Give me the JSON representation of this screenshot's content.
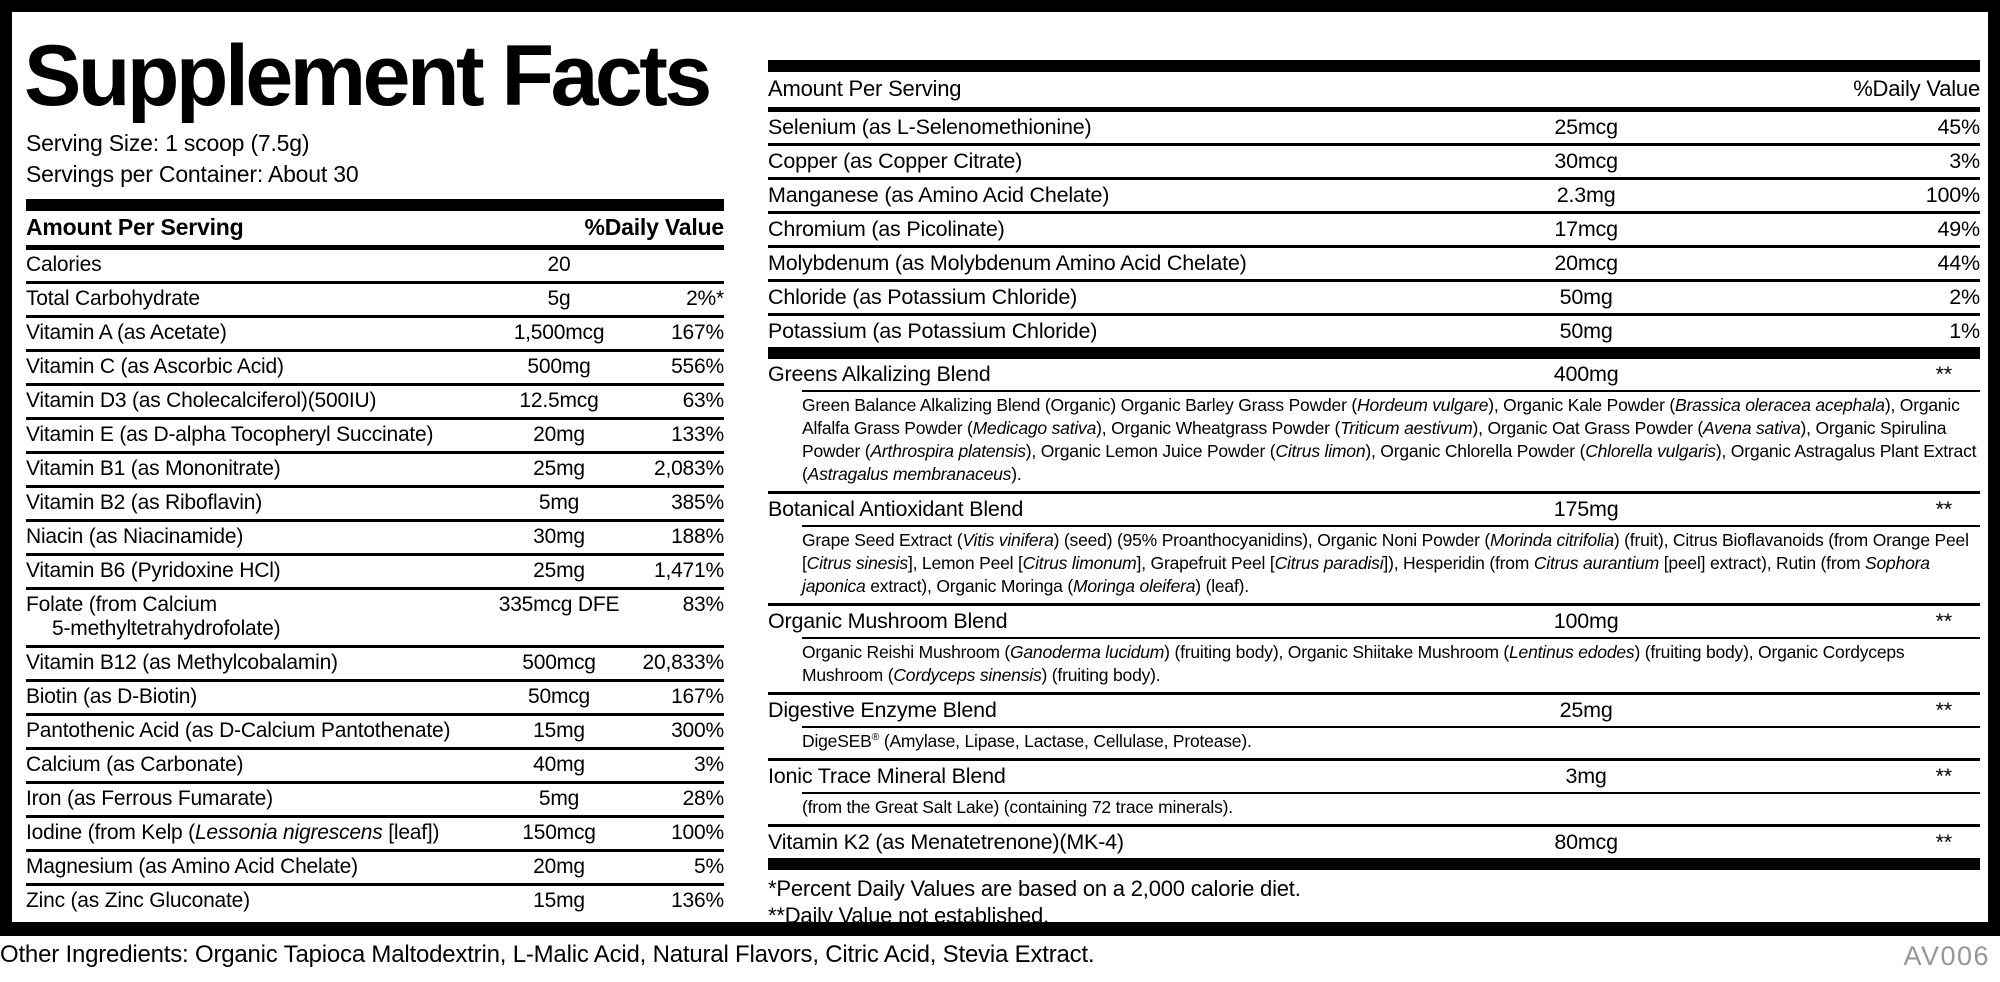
{
  "theme": {
    "ink": "#000000",
    "paper": "#ffffff",
    "code_color": "#969696"
  },
  "left": {
    "title": "Supplement Facts",
    "serving_size": "Serving Size: 1 scoop (7.5g)",
    "servings_per_container": "Servings per Container: About 30",
    "header": {
      "amount": "Amount Per Serving",
      "dv": "%Daily Value"
    },
    "rows": [
      {
        "name": "Calories",
        "amount": "20",
        "dv": ""
      },
      {
        "name": "Total Carbohydrate",
        "amount": "5g",
        "dv": "2%*"
      },
      {
        "name": "Vitamin A (as Acetate)",
        "amount": "1,500mcg",
        "dv": "167%"
      },
      {
        "name": "Vitamin C (as Ascorbic Acid)",
        "amount": "500mg",
        "dv": "556%"
      },
      {
        "name": "Vitamin D3 (as Cholecalciferol)(500IU)",
        "amount": "12.5mcg",
        "dv": "63%"
      },
      {
        "name": "Vitamin E (as D-alpha Tocopheryl Succinate)",
        "amount": "20mg",
        "dv": "133%"
      },
      {
        "name": "Vitamin B1 (as Mononitrate)",
        "amount": "25mg",
        "dv": "2,083%"
      },
      {
        "name": "Vitamin B2 (as Riboflavin)",
        "amount": "5mg",
        "dv": "385%"
      },
      {
        "name": "Niacin (as Niacinamide)",
        "amount": "30mg",
        "dv": "188%"
      },
      {
        "name": "Vitamin B6 (Pyridoxine HCl)",
        "amount": "25mg",
        "dv": "1,471%"
      },
      {
        "name": [
          {
            "t": "Folate (from Calcium"
          },
          {
            "br": true
          },
          {
            "t": "5-methyltetrahydrofolate)"
          }
        ],
        "amount": "335mcg DFE",
        "dv": "83%"
      },
      {
        "name": "Vitamin B12 (as Methylcobalamin)",
        "amount": "500mcg",
        "dv": "20,833%"
      },
      {
        "name": "Biotin (as D-Biotin)",
        "amount": "50mcg",
        "dv": "167%"
      },
      {
        "name": "Pantothenic Acid (as D-Calcium Pantothenate)",
        "amount": "15mg",
        "dv": "300%"
      },
      {
        "name": "Calcium (as Carbonate)",
        "amount": "40mg",
        "dv": "3%"
      },
      {
        "name": "Iron (as Ferrous Fumarate)",
        "amount": "5mg",
        "dv": "28%"
      },
      {
        "name": [
          {
            "t": "Iodine (from Kelp ("
          },
          {
            "t": "Lessonia nigrescens",
            "i": true
          },
          {
            "t": " [leaf])"
          }
        ],
        "amount": "150mcg",
        "dv": "100%"
      },
      {
        "name": "Magnesium (as Amino Acid Chelate)",
        "amount": "20mg",
        "dv": "5%"
      },
      {
        "name": "Zinc (as Zinc Gluconate)",
        "amount": "15mg",
        "dv": "136%"
      }
    ]
  },
  "right": {
    "header": {
      "amount": "Amount Per Serving",
      "dv": "%Daily Value"
    },
    "rows": [
      {
        "name": "Selenium (as L-Selenomethionine)",
        "amount": "25mcg",
        "dv": "45%"
      },
      {
        "name": "Copper (as Copper Citrate)",
        "amount": "30mcg",
        "dv": "3%"
      },
      {
        "name": "Manganese (as Amino Acid Chelate)",
        "amount": "2.3mg",
        "dv": "100%"
      },
      {
        "name": "Chromium (as Picolinate)",
        "amount": "17mcg",
        "dv": "49%"
      },
      {
        "name": "Molybdenum (as Molybdenum Amino Acid Chelate)",
        "amount": "20mcg",
        "dv": "44%"
      },
      {
        "name": "Chloride (as Potassium Chloride)",
        "amount": "50mg",
        "dv": "2%"
      },
      {
        "name": "Potassium (as Potassium Chloride)",
        "amount": "50mg",
        "dv": "1%"
      }
    ],
    "blends": [
      {
        "name": "Greens Alkalizing Blend",
        "amount": "400mg",
        "dv": "**",
        "desc": [
          {
            "t": "Green Balance Alkalizing Blend (Organic) Organic Barley Grass Powder ("
          },
          {
            "t": "Hordeum vulgare",
            "i": true
          },
          {
            "t": "), Organic Kale Powder ("
          },
          {
            "t": "Brassica oleracea acephala",
            "i": true
          },
          {
            "t": "), Organic Alfalfa Grass Powder ("
          },
          {
            "t": "Medicago sativa",
            "i": true
          },
          {
            "t": "), Organic Wheatgrass Powder ("
          },
          {
            "t": "Triticum aestivum",
            "i": true
          },
          {
            "t": "), Organic Oat Grass Powder ("
          },
          {
            "t": "Avena sativa",
            "i": true
          },
          {
            "t": "), Organic Spirulina Powder ("
          },
          {
            "t": "Arthrospira platensis",
            "i": true
          },
          {
            "t": "), Organic Lemon Juice Powder ("
          },
          {
            "t": "Citrus limon",
            "i": true
          },
          {
            "t": "), Organic Chlorella Powder ("
          },
          {
            "t": "Chlorella vulgaris",
            "i": true
          },
          {
            "t": "), Organic Astragalus Plant Extract ("
          },
          {
            "t": "Astragalus membranaceus",
            "i": true
          },
          {
            "t": ")."
          }
        ]
      },
      {
        "name": "Botanical Antioxidant Blend",
        "amount": "175mg",
        "dv": "**",
        "desc": [
          {
            "t": "Grape Seed Extract ("
          },
          {
            "t": "Vitis vinifera",
            "i": true
          },
          {
            "t": ") (seed) (95% Proanthocyanidins), Organic Noni Powder ("
          },
          {
            "t": "Morinda citrifolia",
            "i": true
          },
          {
            "t": ") (fruit), Citrus Bioflavanoids (from Orange Peel ["
          },
          {
            "t": "Citrus sinesis",
            "i": true
          },
          {
            "t": "], Lemon Peel ["
          },
          {
            "t": "Citrus limonum",
            "i": true
          },
          {
            "t": "], Grapefruit Peel ["
          },
          {
            "t": "Citrus paradisi",
            "i": true
          },
          {
            "t": "]), Hesperidin (from "
          },
          {
            "t": "Citrus aurantium",
            "i": true
          },
          {
            "t": " [peel] extract), Rutin (from "
          },
          {
            "t": "Sophora japonica",
            "i": true
          },
          {
            "t": " extract), Organic Moringa ("
          },
          {
            "t": "Moringa oleifera",
            "i": true
          },
          {
            "t": ") (leaf)."
          }
        ]
      },
      {
        "name": "Organic Mushroom Blend",
        "amount": "100mg",
        "dv": "**",
        "desc": [
          {
            "t": "Organic Reishi Mushroom ("
          },
          {
            "t": "Ganoderma lucidum",
            "i": true
          },
          {
            "t": ") (fruiting body), Organic Shiitake Mushroom ("
          },
          {
            "t": "Lentinus edodes",
            "i": true
          },
          {
            "t": ") (fruiting body), Organic Cordyceps Mushroom ("
          },
          {
            "t": "Cordyceps sinensis",
            "i": true
          },
          {
            "t": ") (fruiting body)."
          }
        ]
      },
      {
        "name": "Digestive Enzyme Blend",
        "amount": "25mg",
        "dv": "**",
        "desc": [
          {
            "t": "DigeSEB"
          },
          {
            "t": "®",
            "sup": true
          },
          {
            "t": " (Amylase, Lipase, Lactase, Cellulase, Protease)."
          }
        ]
      },
      {
        "name": "Ionic Trace Mineral Blend",
        "amount": "3mg",
        "dv": "**",
        "desc": [
          {
            "t": "(from the Great Salt Lake) (containing 72 trace minerals)."
          }
        ]
      },
      {
        "name": "Vitamin K2 (as Menatetrenone)(MK-4)",
        "amount": "80mcg",
        "dv": "**"
      }
    ],
    "footnotes": [
      "*Percent Daily Values are based on a 2,000 calorie diet.",
      "**Daily Value not established."
    ]
  },
  "footer": {
    "other_ingredients": "Other Ingredients: Organic Tapioca Maltodextrin, L-Malic Acid, Natural Flavors, Citric Acid, Stevia Extract.",
    "code": "AV006"
  }
}
